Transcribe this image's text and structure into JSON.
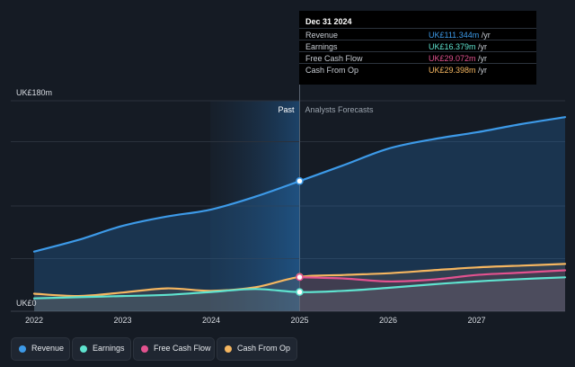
{
  "chart_data": {
    "type": "line",
    "ylabel_top": "UK£180m",
    "ylabel_bottom": "UK£0",
    "ylim": [
      0,
      180
    ],
    "xlim": [
      2022,
      2028
    ],
    "x_ticks": [
      "2022",
      "2023",
      "2024",
      "2025",
      "2026",
      "2027"
    ],
    "divider_x": 2025,
    "past_label": "Past",
    "forecast_label": "Analysts Forecasts",
    "series": [
      {
        "name": "Revenue",
        "color": "#3d9ae8",
        "x": [
          2022,
          2022.5,
          2023,
          2023.5,
          2024,
          2024.5,
          2025,
          2025.5,
          2026,
          2026.5,
          2027,
          2027.5,
          2028
        ],
        "values": [
          51,
          61,
          73,
          81,
          87,
          98,
          111.3,
          125,
          139,
          147,
          153,
          160,
          166
        ]
      },
      {
        "name": "Earnings",
        "color": "#5fe3cf",
        "x": [
          2022,
          2022.5,
          2023,
          2023.5,
          2024,
          2024.5,
          2025,
          2025.5,
          2026,
          2026.5,
          2027,
          2027.5,
          2028
        ],
        "values": [
          11,
          12,
          13,
          14,
          16.5,
          19,
          16.4,
          17.5,
          20,
          23,
          25.5,
          27.5,
          29
        ]
      },
      {
        "name": "Free Cash Flow",
        "color": "#e2528f",
        "x": [
          2025,
          2025.5,
          2026,
          2026.5,
          2027,
          2027.5,
          2028
        ],
        "values": [
          29.1,
          28,
          25.5,
          27,
          31,
          33,
          35
        ]
      },
      {
        "name": "Cash From Op",
        "color": "#f5b660",
        "x": [
          2022,
          2022.5,
          2023,
          2023.5,
          2024,
          2024.5,
          2025,
          2025.5,
          2026,
          2026.5,
          2027,
          2027.5,
          2028
        ],
        "values": [
          15,
          13,
          16,
          19.5,
          17.5,
          20.5,
          29.4,
          31,
          32.5,
          35,
          37.5,
          39,
          40.5
        ]
      }
    ]
  },
  "tooltip": {
    "date": "Dec 31 2024",
    "rows": [
      {
        "label": "Revenue",
        "value": "UK£111.344m",
        "unit": " /yr",
        "color": "#3d9ae8"
      },
      {
        "label": "Earnings",
        "value": "UK£16.379m",
        "unit": " /yr",
        "color": "#5fe3cf"
      },
      {
        "label": "Free Cash Flow",
        "value": "UK£29.072m",
        "unit": " /yr",
        "color": "#e2528f"
      },
      {
        "label": "Cash From Op",
        "value": "UK£29.398m",
        "unit": " /yr",
        "color": "#f5b660"
      }
    ]
  },
  "legend": [
    {
      "label": "Revenue",
      "color": "#3d9ae8"
    },
    {
      "label": "Earnings",
      "color": "#5fe3cf"
    },
    {
      "label": "Free Cash Flow",
      "color": "#e2528f"
    },
    {
      "label": "Cash From Op",
      "color": "#f5b660"
    }
  ]
}
